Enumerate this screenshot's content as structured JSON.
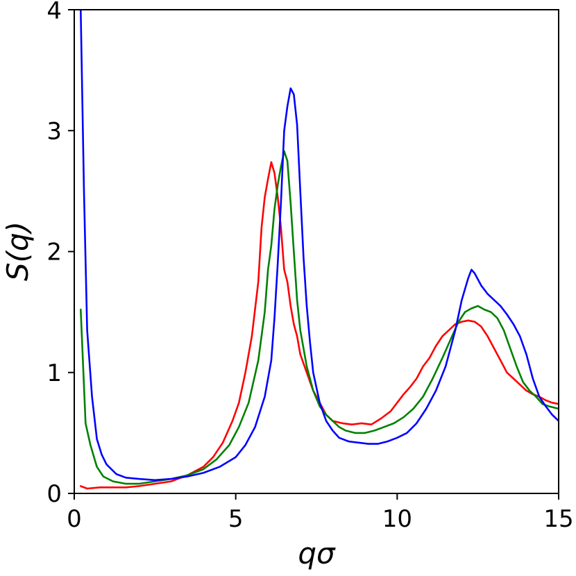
{
  "chart_data": {
    "type": "line",
    "title": "",
    "xlabel": "qσ",
    "ylabel": "S(q)",
    "xlim": [
      0,
      15
    ],
    "ylim": [
      0,
      4
    ],
    "xticks": [
      0,
      5,
      10,
      15
    ],
    "yticks": [
      0,
      1,
      2,
      3,
      4
    ],
    "xtick_labels": [
      "0",
      "5",
      "10",
      "15"
    ],
    "ytick_labels": [
      "0",
      "1",
      "2",
      "3",
      "4"
    ],
    "grid": false,
    "legend": "none",
    "series": [
      {
        "color": "#ff0000",
        "x": [
          0.2,
          0.4,
          0.8,
          1.2,
          1.6,
          2.0,
          2.5,
          3.0,
          3.5,
          4.0,
          4.3,
          4.6,
          4.9,
          5.1,
          5.3,
          5.5,
          5.7,
          5.8,
          5.9,
          6.0,
          6.1,
          6.2,
          6.3,
          6.4,
          6.5,
          6.6,
          6.7,
          6.8,
          6.9,
          7.0,
          7.2,
          7.4,
          7.6,
          7.8,
          8.0,
          8.3,
          8.6,
          8.9,
          9.2,
          9.5,
          9.8,
          10.0,
          10.2,
          10.4,
          10.6,
          10.8,
          11.0,
          11.2,
          11.4,
          11.6,
          11.8,
          12.0,
          12.2,
          12.4,
          12.6,
          12.8,
          13.0,
          13.2,
          13.4,
          13.6,
          13.8,
          14.0,
          14.2,
          14.4,
          14.6,
          14.8,
          15.0
        ],
        "values": [
          0.06,
          0.04,
          0.05,
          0.05,
          0.05,
          0.06,
          0.08,
          0.1,
          0.15,
          0.22,
          0.3,
          0.42,
          0.6,
          0.75,
          1.0,
          1.3,
          1.75,
          2.2,
          2.45,
          2.6,
          2.74,
          2.65,
          2.45,
          2.2,
          1.85,
          1.75,
          1.55,
          1.4,
          1.3,
          1.15,
          1.0,
          0.85,
          0.75,
          0.65,
          0.6,
          0.58,
          0.57,
          0.58,
          0.57,
          0.62,
          0.68,
          0.75,
          0.82,
          0.88,
          0.95,
          1.05,
          1.12,
          1.22,
          1.3,
          1.35,
          1.4,
          1.42,
          1.43,
          1.42,
          1.38,
          1.3,
          1.2,
          1.1,
          1.0,
          0.95,
          0.9,
          0.85,
          0.82,
          0.8,
          0.77,
          0.75,
          0.74
        ]
      },
      {
        "color": "#008000",
        "x": [
          0.2,
          0.35,
          0.5,
          0.7,
          0.9,
          1.2,
          1.6,
          2.0,
          2.5,
          3.0,
          3.5,
          4.0,
          4.4,
          4.8,
          5.1,
          5.4,
          5.7,
          5.9,
          6.0,
          6.1,
          6.2,
          6.3,
          6.4,
          6.5,
          6.6,
          6.7,
          6.8,
          6.9,
          7.0,
          7.2,
          7.4,
          7.6,
          7.8,
          8.0,
          8.2,
          8.4,
          8.7,
          9.0,
          9.3,
          9.6,
          9.9,
          10.2,
          10.5,
          10.8,
          11.1,
          11.4,
          11.7,
          11.9,
          12.1,
          12.3,
          12.5,
          12.7,
          12.9,
          13.1,
          13.3,
          13.5,
          13.7,
          13.9,
          14.1,
          14.3,
          14.5,
          14.7,
          15.0
        ],
        "values": [
          1.52,
          0.58,
          0.4,
          0.22,
          0.14,
          0.1,
          0.08,
          0.08,
          0.1,
          0.12,
          0.15,
          0.2,
          0.28,
          0.4,
          0.55,
          0.75,
          1.1,
          1.5,
          1.85,
          2.05,
          2.35,
          2.55,
          2.7,
          2.83,
          2.75,
          2.4,
          2.0,
          1.6,
          1.35,
          1.05,
          0.85,
          0.72,
          0.65,
          0.6,
          0.55,
          0.52,
          0.5,
          0.5,
          0.52,
          0.55,
          0.58,
          0.63,
          0.7,
          0.8,
          0.95,
          1.12,
          1.3,
          1.42,
          1.5,
          1.53,
          1.55,
          1.52,
          1.5,
          1.45,
          1.35,
          1.2,
          1.05,
          0.92,
          0.85,
          0.8,
          0.74,
          0.72,
          0.7
        ]
      },
      {
        "color": "#0000ff",
        "x": [
          0.2,
          0.3,
          0.4,
          0.55,
          0.7,
          0.85,
          1.0,
          1.3,
          1.6,
          2.0,
          2.5,
          3.0,
          3.5,
          4.0,
          4.5,
          5.0,
          5.3,
          5.6,
          5.9,
          6.1,
          6.2,
          6.3,
          6.4,
          6.5,
          6.6,
          6.7,
          6.8,
          6.9,
          7.0,
          7.1,
          7.2,
          7.3,
          7.4,
          7.6,
          7.8,
          8.0,
          8.2,
          8.5,
          8.8,
          9.1,
          9.4,
          9.7,
          10.0,
          10.3,
          10.6,
          10.9,
          11.2,
          11.5,
          11.8,
          12.0,
          12.2,
          12.3,
          12.4,
          12.6,
          12.8,
          13.0,
          13.2,
          13.4,
          13.6,
          13.8,
          14.0,
          14.2,
          14.4,
          14.6,
          14.8,
          15.0
        ],
        "values": [
          4.0,
          2.5,
          1.35,
          0.8,
          0.45,
          0.32,
          0.24,
          0.16,
          0.13,
          0.12,
          0.11,
          0.12,
          0.14,
          0.17,
          0.22,
          0.3,
          0.4,
          0.55,
          0.8,
          1.1,
          1.45,
          1.9,
          2.4,
          3.0,
          3.2,
          3.35,
          3.3,
          3.05,
          2.5,
          1.95,
          1.55,
          1.25,
          1.0,
          0.75,
          0.6,
          0.52,
          0.46,
          0.43,
          0.42,
          0.41,
          0.41,
          0.43,
          0.46,
          0.5,
          0.58,
          0.7,
          0.85,
          1.05,
          1.35,
          1.6,
          1.78,
          1.85,
          1.82,
          1.72,
          1.65,
          1.6,
          1.55,
          1.48,
          1.4,
          1.3,
          1.15,
          0.95,
          0.8,
          0.72,
          0.65,
          0.6
        ]
      }
    ]
  }
}
